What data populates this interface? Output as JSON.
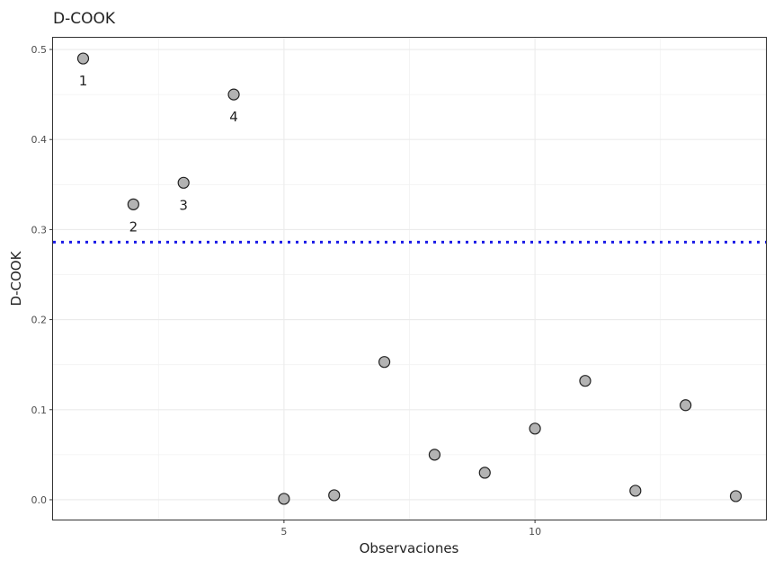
{
  "chart_data": {
    "type": "scatter",
    "title": "D-COOK",
    "xlabel": "Observaciones",
    "ylabel": "D-COOK",
    "xlim": [
      0.4,
      14.6
    ],
    "ylim": [
      -0.022,
      0.513
    ],
    "x_ticks": [
      5,
      10
    ],
    "y_ticks": [
      0.0,
      0.1,
      0.2,
      0.3,
      0.4,
      0.5
    ],
    "x_tick_labels": [
      "5",
      "10"
    ],
    "y_tick_labels": [
      "0.0",
      "0.1",
      "0.2",
      "0.3",
      "0.4",
      "0.5"
    ],
    "grid": true,
    "series": [
      {
        "x": [
          1,
          2,
          3,
          4,
          5,
          6,
          7,
          8,
          9,
          10,
          11,
          12,
          13,
          14
        ],
        "y": [
          0.49,
          0.328,
          0.352,
          0.45,
          0.001,
          0.005,
          0.153,
          0.05,
          0.03,
          0.079,
          0.132,
          0.01,
          0.105,
          0.004
        ]
      }
    ],
    "annotations": [
      {
        "x": 1,
        "y": 0.49,
        "text": "1"
      },
      {
        "x": 2,
        "y": 0.328,
        "text": "2"
      },
      {
        "x": 3,
        "y": 0.352,
        "text": "3"
      },
      {
        "x": 4,
        "y": 0.45,
        "text": "4"
      }
    ],
    "reference_line": {
      "y": 0.286,
      "orientation": "horizontal",
      "style": "dotted",
      "color": "#1a1ae6"
    },
    "colors": {
      "point_fill": "#b3b3b3",
      "point_stroke": "#222222"
    }
  }
}
